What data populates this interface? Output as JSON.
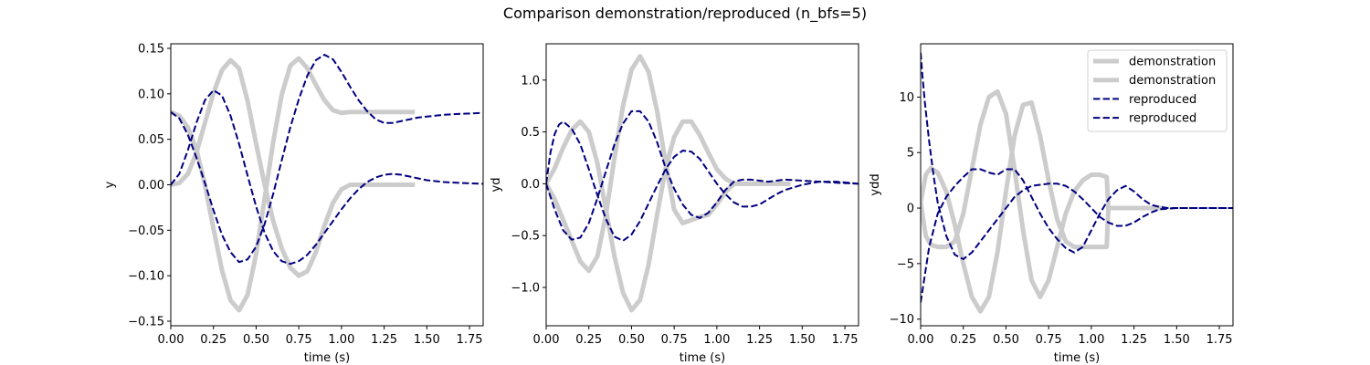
{
  "figure": {
    "title": "Comparison demonstration/reproduced  (n_bfs=5)"
  },
  "colors": {
    "demonstration": "#cccccc",
    "reproduced": "#000080"
  },
  "chart_data": [
    {
      "type": "line",
      "xlabel": "time (s)",
      "ylabel": "y",
      "xlim": [
        0,
        1.83
      ],
      "ylim": [
        -0.155,
        0.155
      ],
      "xticks": [
        "0.00",
        "0.25",
        "0.50",
        "0.75",
        "1.00",
        "1.25",
        "1.50",
        "1.75"
      ],
      "xtick_values": [
        0,
        0.25,
        0.5,
        0.75,
        1.0,
        1.25,
        1.5,
        1.75
      ],
      "yticks": [
        "−0.15",
        "−0.10",
        "−0.05",
        "0.00",
        "0.05",
        "0.10",
        "0.15"
      ],
      "ytick_values": [
        -0.15,
        -0.1,
        -0.05,
        0,
        0.05,
        0.1,
        0.15
      ],
      "series": [
        {
          "style": "demonstration",
          "x": [
            0.0,
            0.05,
            0.1,
            0.15,
            0.2,
            0.25,
            0.3,
            0.35,
            0.4,
            0.45,
            0.5,
            0.55,
            0.6,
            0.65,
            0.7,
            0.75,
            0.8,
            0.85,
            0.9,
            0.95,
            1.0,
            1.05,
            1.1,
            1.15,
            1.2,
            1.25,
            1.3,
            1.35,
            1.4,
            1.43
          ],
          "y": [
            0.0,
            0.002,
            0.012,
            0.035,
            0.068,
            0.101,
            0.126,
            0.137,
            0.128,
            0.092,
            0.045,
            0.0,
            -0.04,
            -0.07,
            -0.091,
            -0.1,
            -0.095,
            -0.074,
            -0.045,
            -0.02,
            -0.005,
            0.0,
            0.0,
            0.0,
            0.0,
            0.0,
            0.0,
            0.0,
            0.0,
            0.0
          ]
        },
        {
          "style": "demonstration",
          "x": [
            0.0,
            0.05,
            0.1,
            0.15,
            0.2,
            0.25,
            0.3,
            0.35,
            0.4,
            0.45,
            0.5,
            0.55,
            0.6,
            0.65,
            0.7,
            0.75,
            0.8,
            0.85,
            0.9,
            0.95,
            1.0,
            1.05,
            1.1,
            1.15,
            1.2,
            1.25,
            1.3,
            1.35,
            1.4,
            1.43
          ],
          "y": [
            0.08,
            0.076,
            0.063,
            0.039,
            0.0,
            -0.048,
            -0.094,
            -0.127,
            -0.138,
            -0.121,
            -0.076,
            -0.015,
            0.047,
            0.099,
            0.131,
            0.139,
            0.128,
            0.11,
            0.093,
            0.082,
            0.079,
            0.08,
            0.08,
            0.08,
            0.08,
            0.08,
            0.08,
            0.08,
            0.08,
            0.08
          ]
        },
        {
          "style": "reproduced",
          "x": [
            0.0,
            0.05,
            0.1,
            0.15,
            0.2,
            0.25,
            0.3,
            0.35,
            0.4,
            0.45,
            0.5,
            0.55,
            0.6,
            0.65,
            0.7,
            0.75,
            0.8,
            0.85,
            0.9,
            0.95,
            1.0,
            1.05,
            1.1,
            1.15,
            1.2,
            1.25,
            1.3,
            1.35,
            1.4,
            1.45,
            1.5,
            1.6,
            1.7,
            1.83
          ],
          "y": [
            0.0,
            0.012,
            0.038,
            0.068,
            0.093,
            0.104,
            0.098,
            0.076,
            0.045,
            0.01,
            -0.024,
            -0.053,
            -0.073,
            -0.084,
            -0.087,
            -0.084,
            -0.077,
            -0.066,
            -0.053,
            -0.04,
            -0.027,
            -0.015,
            -0.005,
            0.003,
            0.008,
            0.011,
            0.012,
            0.011,
            0.009,
            0.007,
            0.005,
            0.003,
            0.002,
            0.001
          ]
        },
        {
          "style": "reproduced",
          "x": [
            0.0,
            0.05,
            0.1,
            0.15,
            0.2,
            0.25,
            0.3,
            0.35,
            0.4,
            0.45,
            0.5,
            0.55,
            0.6,
            0.65,
            0.7,
            0.75,
            0.8,
            0.85,
            0.9,
            0.95,
            1.0,
            1.05,
            1.1,
            1.15,
            1.2,
            1.25,
            1.3,
            1.35,
            1.4,
            1.45,
            1.5,
            1.6,
            1.7,
            1.83
          ],
          "y": [
            0.08,
            0.073,
            0.055,
            0.03,
            0.002,
            -0.028,
            -0.055,
            -0.074,
            -0.085,
            -0.082,
            -0.068,
            -0.043,
            -0.01,
            0.027,
            0.063,
            0.094,
            0.12,
            0.137,
            0.143,
            0.138,
            0.124,
            0.108,
            0.093,
            0.081,
            0.072,
            0.068,
            0.068,
            0.07,
            0.072,
            0.074,
            0.075,
            0.077,
            0.078,
            0.079
          ]
        }
      ]
    },
    {
      "type": "line",
      "xlabel": "time (s)",
      "ylabel": "yd",
      "xlim": [
        0,
        1.83
      ],
      "ylim": [
        -1.37,
        1.35
      ],
      "xticks": [
        "0.00",
        "0.25",
        "0.50",
        "0.75",
        "1.00",
        "1.25",
        "1.50",
        "1.75"
      ],
      "xtick_values": [
        0,
        0.25,
        0.5,
        0.75,
        1.0,
        1.25,
        1.5,
        1.75
      ],
      "yticks": [
        "−1.0",
        "−0.5",
        "0.0",
        "0.5",
        "1.0"
      ],
      "ytick_values": [
        -1.0,
        -0.5,
        0,
        0.5,
        1.0
      ],
      "series": [
        {
          "style": "demonstration",
          "x": [
            0.0,
            0.05,
            0.1,
            0.15,
            0.2,
            0.25,
            0.3,
            0.35,
            0.4,
            0.45,
            0.5,
            0.55,
            0.6,
            0.65,
            0.7,
            0.75,
            0.8,
            0.85,
            0.9,
            0.95,
            1.0,
            1.05,
            1.1,
            1.15,
            1.2,
            1.25,
            1.3,
            1.35,
            1.4,
            1.43
          ],
          "y": [
            0.0,
            0.15,
            0.35,
            0.52,
            0.6,
            0.5,
            0.2,
            -0.25,
            -0.7,
            -1.05,
            -1.22,
            -1.12,
            -0.78,
            -0.3,
            0.15,
            0.45,
            0.6,
            0.6,
            0.47,
            0.3,
            0.14,
            0.05,
            0.0,
            0.0,
            0.0,
            0.0,
            0.0,
            0.0,
            0.0,
            0.0
          ]
        },
        {
          "style": "demonstration",
          "x": [
            0.0,
            0.05,
            0.1,
            0.15,
            0.2,
            0.25,
            0.3,
            0.35,
            0.4,
            0.45,
            0.5,
            0.55,
            0.6,
            0.65,
            0.7,
            0.75,
            0.8,
            0.85,
            0.9,
            0.95,
            1.0,
            1.05,
            1.1,
            1.15,
            1.2,
            1.25,
            1.3,
            1.35,
            1.4,
            1.43
          ],
          "y": [
            0.0,
            -0.15,
            -0.35,
            -0.55,
            -0.75,
            -0.84,
            -0.7,
            -0.3,
            0.25,
            0.75,
            1.1,
            1.23,
            1.08,
            0.7,
            0.2,
            -0.25,
            -0.38,
            -0.35,
            -0.32,
            -0.3,
            -0.2,
            -0.08,
            0.0,
            0.0,
            0.0,
            0.0,
            0.0,
            0.0,
            0.0,
            0.0
          ]
        },
        {
          "style": "reproduced",
          "x": [
            0.0,
            0.025,
            0.05,
            0.075,
            0.1,
            0.15,
            0.2,
            0.25,
            0.3,
            0.35,
            0.4,
            0.45,
            0.5,
            0.55,
            0.6,
            0.65,
            0.7,
            0.75,
            0.8,
            0.85,
            0.9,
            0.95,
            1.0,
            1.05,
            1.1,
            1.15,
            1.2,
            1.25,
            1.3,
            1.35,
            1.4,
            1.5,
            1.6,
            1.7,
            1.83
          ],
          "y": [
            0.0,
            0.3,
            0.48,
            0.57,
            0.6,
            0.53,
            0.38,
            0.14,
            -0.11,
            -0.34,
            -0.51,
            -0.55,
            -0.49,
            -0.36,
            -0.19,
            -0.02,
            0.14,
            0.26,
            0.32,
            0.31,
            0.24,
            0.12,
            0.0,
            -0.1,
            -0.18,
            -0.22,
            -0.22,
            -0.2,
            -0.15,
            -0.1,
            -0.06,
            -0.01,
            0.02,
            0.02,
            0.0
          ]
        },
        {
          "style": "reproduced",
          "x": [
            0.0,
            0.05,
            0.1,
            0.15,
            0.2,
            0.25,
            0.3,
            0.35,
            0.4,
            0.45,
            0.5,
            0.55,
            0.6,
            0.65,
            0.7,
            0.75,
            0.8,
            0.85,
            0.9,
            0.95,
            1.0,
            1.05,
            1.1,
            1.15,
            1.2,
            1.25,
            1.3,
            1.35,
            1.4,
            1.5,
            1.6,
            1.7,
            1.83
          ],
          "y": [
            0.0,
            -0.25,
            -0.45,
            -0.54,
            -0.52,
            -0.38,
            -0.14,
            0.12,
            0.38,
            0.58,
            0.7,
            0.7,
            0.6,
            0.4,
            0.15,
            -0.05,
            -0.2,
            -0.3,
            -0.33,
            -0.28,
            -0.18,
            -0.06,
            0.02,
            0.04,
            0.04,
            0.03,
            0.02,
            0.03,
            0.04,
            0.03,
            0.02,
            0.01,
            0.0
          ]
        }
      ]
    },
    {
      "type": "line",
      "xlabel": "time (s)",
      "ylabel": "ydd",
      "xlim": [
        0,
        1.83
      ],
      "ylim": [
        -10.6,
        14.8
      ],
      "xticks": [
        "0.00",
        "0.25",
        "0.50",
        "0.75",
        "1.00",
        "1.25",
        "1.50",
        "1.75"
      ],
      "xtick_values": [
        0,
        0.25,
        0.5,
        0.75,
        1.0,
        1.25,
        1.5,
        1.75
      ],
      "yticks": [
        "−10",
        "−5",
        "0",
        "5",
        "10"
      ],
      "ytick_values": [
        -10,
        -5,
        0,
        5,
        10
      ],
      "legend": {
        "position": "top-right",
        "entries": [
          {
            "label": "demonstration",
            "style": "demonstration"
          },
          {
            "label": "demonstration",
            "style": "demonstration"
          },
          {
            "label": "reproduced",
            "style": "reproduced"
          },
          {
            "label": "reproduced",
            "style": "reproduced"
          }
        ]
      },
      "series": [
        {
          "style": "demonstration",
          "x": [
            0.0,
            0.03,
            0.06,
            0.1,
            0.15,
            0.2,
            0.25,
            0.3,
            0.35,
            0.4,
            0.45,
            0.5,
            0.55,
            0.6,
            0.65,
            0.7,
            0.75,
            0.8,
            0.85,
            0.9,
            0.95,
            1.0,
            1.05,
            1.09,
            1.1,
            1.15,
            1.2,
            1.3,
            1.43
          ],
          "y": [
            0.5,
            3.0,
            3.6,
            3.2,
            1.5,
            -1.5,
            -5.0,
            -8.0,
            -9.3,
            -8.0,
            -4.0,
            1.5,
            6.5,
            9.3,
            9.5,
            6.5,
            2.5,
            -1.0,
            -3.0,
            -3.5,
            -3.5,
            -3.5,
            -3.5,
            -3.5,
            0.0,
            0.0,
            0.0,
            0.0,
            0.0
          ]
        },
        {
          "style": "demonstration",
          "x": [
            0.0,
            0.03,
            0.06,
            0.1,
            0.15,
            0.2,
            0.25,
            0.3,
            0.35,
            0.4,
            0.45,
            0.5,
            0.55,
            0.6,
            0.65,
            0.7,
            0.75,
            0.8,
            0.85,
            0.9,
            0.95,
            1.0,
            1.05,
            1.09,
            1.1,
            1.15,
            1.2,
            1.3,
            1.43
          ],
          "y": [
            0.5,
            -2.5,
            -3.3,
            -3.5,
            -3.5,
            -3.0,
            -0.5,
            3.5,
            7.5,
            10.0,
            10.5,
            8.5,
            3.5,
            -2.0,
            -6.5,
            -8.0,
            -6.5,
            -3.5,
            -0.5,
            1.5,
            2.5,
            3.0,
            3.0,
            2.8,
            0.0,
            0.0,
            0.0,
            0.0,
            0.0
          ]
        },
        {
          "style": "reproduced",
          "x": [
            0.0,
            0.01,
            0.025,
            0.05,
            0.075,
            0.1,
            0.15,
            0.2,
            0.25,
            0.3,
            0.35,
            0.4,
            0.45,
            0.5,
            0.55,
            0.6,
            0.65,
            0.7,
            0.75,
            0.8,
            0.85,
            0.9,
            0.95,
            1.0,
            1.05,
            1.1,
            1.15,
            1.2,
            1.25,
            1.3,
            1.35,
            1.4,
            1.5,
            1.6,
            1.7,
            1.83
          ],
          "y": [
            14.0,
            12.0,
            9.5,
            6.0,
            3.0,
            0.5,
            -2.5,
            -4.2,
            -4.6,
            -4.0,
            -3.0,
            -2.0,
            -1.0,
            0.0,
            1.0,
            1.6,
            2.0,
            2.1,
            2.2,
            2.2,
            2.0,
            1.5,
            0.8,
            0.0,
            -0.8,
            -1.3,
            -1.6,
            -1.6,
            -1.3,
            -0.8,
            -0.4,
            -0.1,
            0.0,
            0.0,
            0.0,
            0.0
          ]
        },
        {
          "style": "reproduced",
          "x": [
            0.0,
            0.025,
            0.05,
            0.1,
            0.15,
            0.2,
            0.25,
            0.3,
            0.35,
            0.4,
            0.45,
            0.5,
            0.55,
            0.6,
            0.65,
            0.7,
            0.75,
            0.8,
            0.85,
            0.9,
            0.95,
            1.0,
            1.05,
            1.1,
            1.15,
            1.2,
            1.25,
            1.3,
            1.35,
            1.4,
            1.45,
            1.5,
            1.6,
            1.7,
            1.83
          ],
          "y": [
            -8.5,
            -6.0,
            -3.5,
            -0.5,
            1.0,
            2.0,
            2.8,
            3.5,
            3.5,
            3.2,
            3.0,
            3.5,
            3.5,
            2.5,
            1.0,
            -0.5,
            -1.8,
            -2.8,
            -3.6,
            -4.0,
            -3.5,
            -2.0,
            -0.5,
            0.8,
            1.6,
            2.0,
            1.5,
            0.8,
            0.3,
            0.1,
            0.0,
            0.0,
            0.0,
            0.0,
            0.0
          ]
        }
      ]
    }
  ]
}
